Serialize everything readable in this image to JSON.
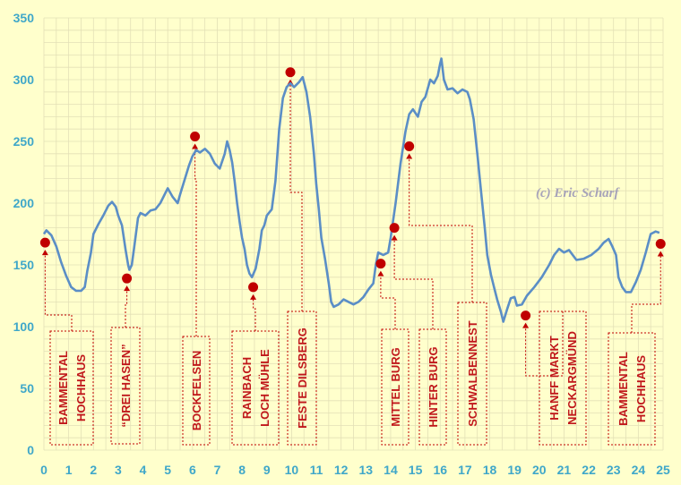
{
  "copyright": "(c) Eric Scharf",
  "colors": {
    "background": "#ffffcc",
    "grid": "#e3e0b6",
    "line": "#5b8ec6",
    "marker": "#c00000",
    "leader": "#c00000",
    "ticks": "#3fa7c9",
    "copyright": "#a7a3b9"
  },
  "chart_data": {
    "type": "line",
    "title": "",
    "xlabel": "",
    "ylabel": "",
    "xlim": [
      0,
      25
    ],
    "ylim": [
      0,
      350
    ],
    "grid": true,
    "x_ticks": [
      "0",
      "1",
      "2",
      "3",
      "4",
      "5",
      "6",
      "7",
      "8",
      "9",
      "10",
      "11",
      "12",
      "13",
      "14",
      "15",
      "16",
      "17",
      "18",
      "19",
      "20",
      "21",
      "22",
      "23",
      "24",
      "25"
    ],
    "y_ticks": [
      "0",
      "50",
      "100",
      "150",
      "200",
      "250",
      "300",
      "350"
    ],
    "series": [
      {
        "points": [
          [
            0.0,
            175
          ],
          [
            0.1,
            178
          ],
          [
            0.3,
            174
          ],
          [
            0.5,
            165
          ],
          [
            0.7,
            152
          ],
          [
            0.9,
            141
          ],
          [
            1.1,
            132
          ],
          [
            1.3,
            129
          ],
          [
            1.5,
            129
          ],
          [
            1.65,
            132
          ],
          [
            1.75,
            145
          ],
          [
            1.9,
            160
          ],
          [
            2.0,
            175
          ],
          [
            2.2,
            183
          ],
          [
            2.4,
            190
          ],
          [
            2.6,
            198
          ],
          [
            2.75,
            201
          ],
          [
            2.9,
            197
          ],
          [
            3.0,
            190
          ],
          [
            3.15,
            182
          ],
          [
            3.3,
            162
          ],
          [
            3.4,
            150
          ],
          [
            3.45,
            146
          ],
          [
            3.55,
            150
          ],
          [
            3.65,
            165
          ],
          [
            3.8,
            188
          ],
          [
            3.9,
            192
          ],
          [
            4.1,
            190
          ],
          [
            4.3,
            194
          ],
          [
            4.5,
            195
          ],
          [
            4.7,
            200
          ],
          [
            4.9,
            208
          ],
          [
            5.0,
            212
          ],
          [
            5.2,
            205
          ],
          [
            5.4,
            200
          ],
          [
            5.5,
            207
          ],
          [
            5.7,
            220
          ],
          [
            5.85,
            230
          ],
          [
            6.0,
            238
          ],
          [
            6.15,
            243
          ],
          [
            6.3,
            241
          ],
          [
            6.5,
            244
          ],
          [
            6.7,
            240
          ],
          [
            6.9,
            232
          ],
          [
            7.1,
            228
          ],
          [
            7.3,
            240
          ],
          [
            7.4,
            250
          ],
          [
            7.5,
            243
          ],
          [
            7.6,
            233
          ],
          [
            7.7,
            218
          ],
          [
            7.8,
            200
          ],
          [
            7.9,
            185
          ],
          [
            8.0,
            172
          ],
          [
            8.1,
            163
          ],
          [
            8.2,
            150
          ],
          [
            8.3,
            143
          ],
          [
            8.4,
            140
          ],
          [
            8.55,
            147
          ],
          [
            8.7,
            163
          ],
          [
            8.8,
            178
          ],
          [
            8.9,
            182
          ],
          [
            9.0,
            190
          ],
          [
            9.2,
            195
          ],
          [
            9.35,
            218
          ],
          [
            9.5,
            260
          ],
          [
            9.65,
            285
          ],
          [
            9.8,
            294
          ],
          [
            9.95,
            297
          ],
          [
            10.1,
            294
          ],
          [
            10.3,
            298
          ],
          [
            10.45,
            302
          ],
          [
            10.6,
            290
          ],
          [
            10.75,
            270
          ],
          [
            10.9,
            240
          ],
          [
            11.0,
            215
          ],
          [
            11.1,
            195
          ],
          [
            11.2,
            172
          ],
          [
            11.35,
            155
          ],
          [
            11.5,
            135
          ],
          [
            11.6,
            120
          ],
          [
            11.7,
            116
          ],
          [
            11.9,
            118
          ],
          [
            12.1,
            122
          ],
          [
            12.3,
            120
          ],
          [
            12.5,
            118
          ],
          [
            12.7,
            120
          ],
          [
            12.9,
            124
          ],
          [
            13.1,
            130
          ],
          [
            13.3,
            135
          ],
          [
            13.4,
            150
          ],
          [
            13.5,
            160
          ],
          [
            13.7,
            158
          ],
          [
            13.9,
            160
          ],
          [
            14.0,
            172
          ],
          [
            14.2,
            200
          ],
          [
            14.4,
            232
          ],
          [
            14.6,
            258
          ],
          [
            14.75,
            272
          ],
          [
            14.9,
            276
          ],
          [
            15.1,
            270
          ],
          [
            15.25,
            282
          ],
          [
            15.4,
            286
          ],
          [
            15.6,
            300
          ],
          [
            15.75,
            297
          ],
          [
            15.9,
            303
          ],
          [
            16.0,
            313
          ],
          [
            16.05,
            317
          ],
          [
            16.15,
            300
          ],
          [
            16.3,
            292
          ],
          [
            16.5,
            293
          ],
          [
            16.7,
            289
          ],
          [
            16.9,
            292
          ],
          [
            17.1,
            290
          ],
          [
            17.2,
            284
          ],
          [
            17.35,
            268
          ],
          [
            17.5,
            240
          ],
          [
            17.65,
            210
          ],
          [
            17.8,
            180
          ],
          [
            17.9,
            158
          ],
          [
            18.05,
            142
          ],
          [
            18.2,
            130
          ],
          [
            18.3,
            122
          ],
          [
            18.45,
            112
          ],
          [
            18.55,
            104
          ],
          [
            18.7,
            114
          ],
          [
            18.85,
            123
          ],
          [
            19.0,
            124
          ],
          [
            19.1,
            117
          ],
          [
            19.3,
            118
          ],
          [
            19.5,
            125
          ],
          [
            19.8,
            132
          ],
          [
            20.1,
            140
          ],
          [
            20.4,
            150
          ],
          [
            20.6,
            158
          ],
          [
            20.8,
            163
          ],
          [
            21.0,
            160
          ],
          [
            21.2,
            162
          ],
          [
            21.5,
            154
          ],
          [
            21.8,
            155
          ],
          [
            22.1,
            158
          ],
          [
            22.4,
            163
          ],
          [
            22.6,
            168
          ],
          [
            22.8,
            171
          ],
          [
            22.95,
            165
          ],
          [
            23.1,
            158
          ],
          [
            23.2,
            140
          ],
          [
            23.35,
            132
          ],
          [
            23.5,
            128
          ],
          [
            23.7,
            128
          ],
          [
            23.9,
            136
          ],
          [
            24.1,
            146
          ],
          [
            24.3,
            160
          ],
          [
            24.5,
            175
          ],
          [
            24.7,
            177
          ],
          [
            24.85,
            176
          ]
        ]
      }
    ],
    "annotations": [
      {
        "lines": [
          "BAMMENTAL",
          "HOCHHAUS"
        ],
        "x": 0.05,
        "y": 168
      },
      {
        "lines": [
          "“DREI HASEN”"
        ],
        "x": 3.35,
        "y": 139
      },
      {
        "lines": [
          "BOCKFELSEN"
        ],
        "x": 6.1,
        "y": 254
      },
      {
        "lines": [
          "RAINBACH",
          "LOCH MÜHLE"
        ],
        "x": 8.45,
        "y": 132
      },
      {
        "lines": [
          "FESTE DILSBERG"
        ],
        "x": 9.95,
        "y": 306
      },
      {
        "lines": [
          "MITTEL BURG"
        ],
        "x": 13.6,
        "y": 151
      },
      {
        "lines": [
          "HINTER BURG"
        ],
        "x": 14.15,
        "y": 180
      },
      {
        "lines": [
          "SCHWALBENNEST"
        ],
        "x": 14.75,
        "y": 246
      },
      {
        "lines": [
          "HANFF MARKT",
          "NECKARGMÜND"
        ],
        "x": 19.45,
        "y": 109
      },
      {
        "lines": [
          "BAMMENTAL",
          "HOCHHAUS"
        ],
        "x": 24.9,
        "y": 167
      }
    ]
  }
}
